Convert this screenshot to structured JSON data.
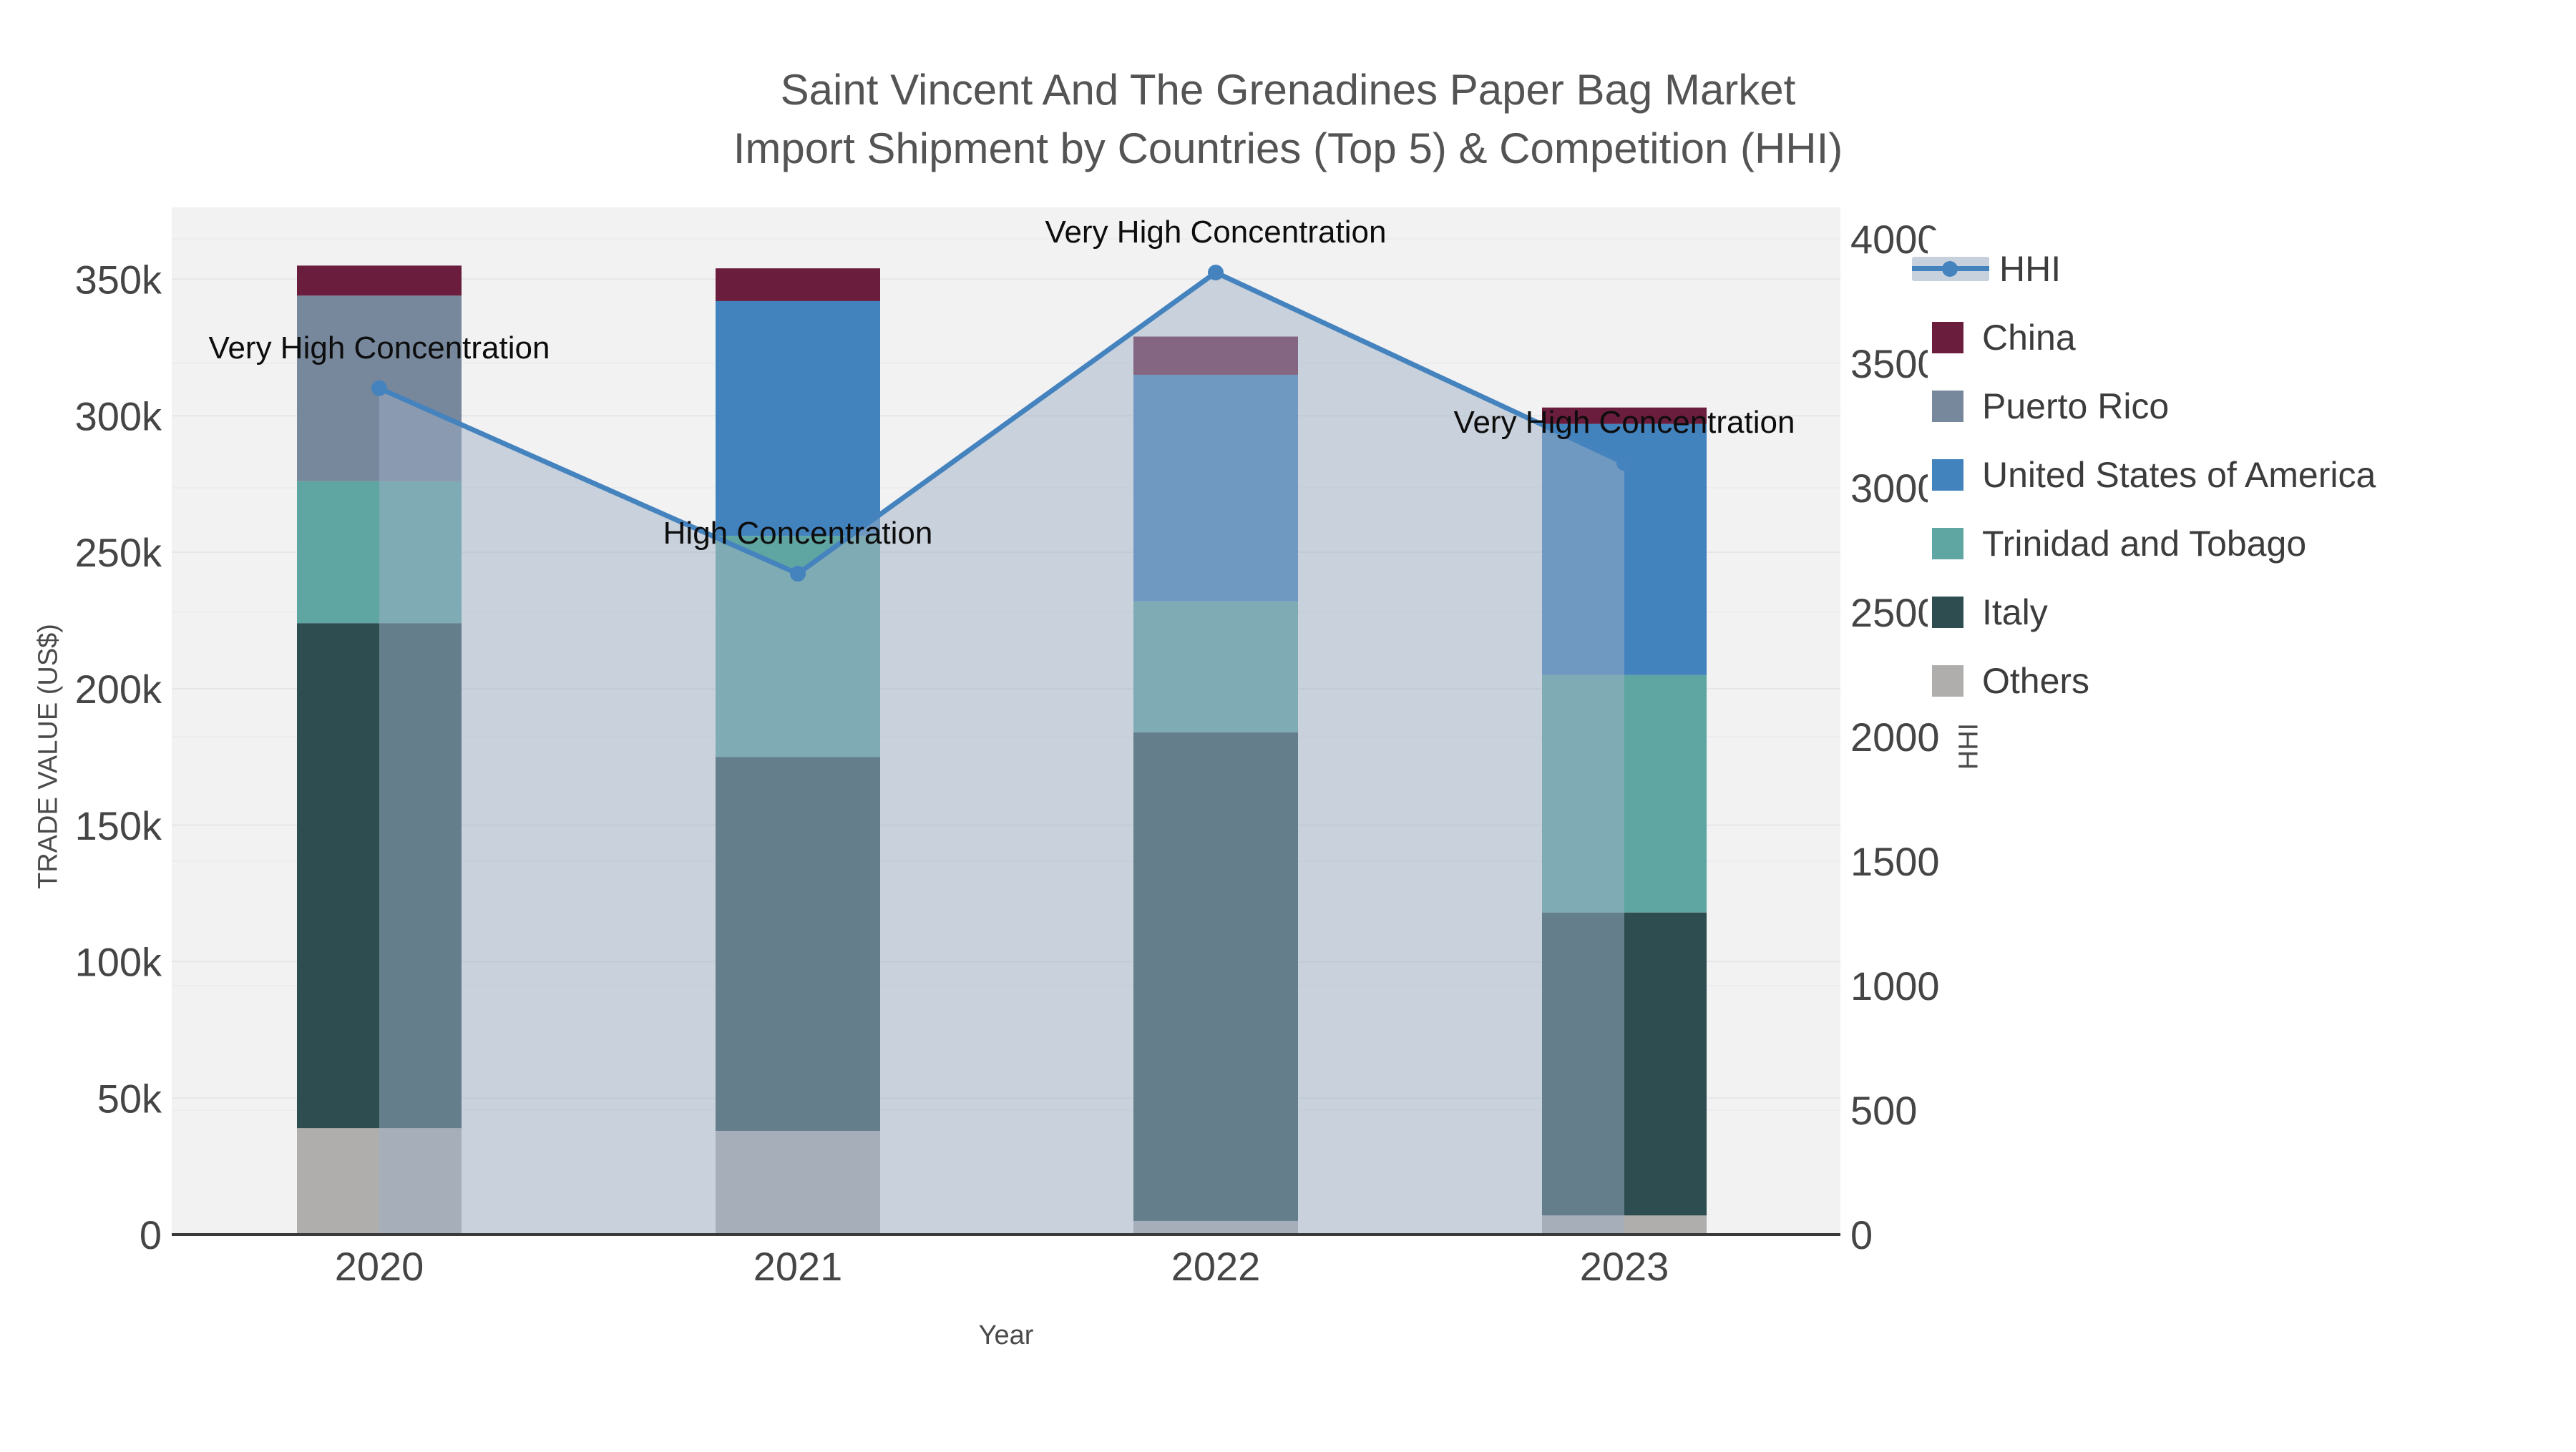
{
  "title": {
    "line1": "Saint Vincent And The Grenadines Paper Bag Market",
    "line2": "Import Shipment by Countries (Top 5) & Competition (HHI)"
  },
  "chart_data": {
    "type": "bar",
    "subtype": "stacked-bars-with-line-overlay",
    "categories": [
      "2020",
      "2021",
      "2022",
      "2023"
    ],
    "series": [
      {
        "name": "Others",
        "color": "#AFAEAC",
        "values": [
          39000,
          38000,
          5000,
          7000
        ]
      },
      {
        "name": "Italy",
        "color": "#2D4D50",
        "values": [
          185000,
          137000,
          179000,
          111000
        ]
      },
      {
        "name": "Trinidad and Tobago",
        "color": "#5FA6A2",
        "values": [
          52000,
          81000,
          48000,
          87000
        ]
      },
      {
        "name": "United States of America",
        "color": "#4282BD",
        "values": [
          0,
          86000,
          83000,
          92000
        ]
      },
      {
        "name": "Puerto Rico",
        "color": "#77879C",
        "values": [
          68000,
          0,
          0,
          0
        ]
      },
      {
        "name": "China",
        "color": "#6B1D3E",
        "values": [
          11000,
          12000,
          14000,
          6000
        ]
      }
    ],
    "line_series": {
      "name": "HHI",
      "color": "#4583BE",
      "area_fill": "rgba(158,175,197,0.5)",
      "values": [
        3400,
        2655,
        3865,
        3100
      ]
    },
    "annotations": [
      {
        "category": "2020",
        "text": "Very High Concentration"
      },
      {
        "category": "2021",
        "text": "High Concentration"
      },
      {
        "category": "2022",
        "text": "Very High Concentration"
      },
      {
        "category": "2023",
        "text": "Very High Concentration"
      }
    ],
    "xlabel": "Year",
    "ylabel_left": "TRADE VALUE (US$)",
    "ylabel_right": "HHI",
    "left_axis": {
      "ticks": [
        "0",
        "50k",
        "100k",
        "150k",
        "200k",
        "250k",
        "300k",
        "350k"
      ],
      "tick_values": [
        0,
        50000,
        100000,
        150000,
        200000,
        250000,
        300000,
        350000
      ],
      "ylim": [
        0,
        377000
      ]
    },
    "right_axis": {
      "ticks": [
        "0",
        "500",
        "1000",
        "1500",
        "2000",
        "2500",
        "3000",
        "3500",
        "4000"
      ],
      "tick_values": [
        0,
        500,
        1000,
        1500,
        2000,
        2500,
        3000,
        3500,
        4000
      ],
      "ylim": [
        0,
        4127
      ]
    },
    "grid": "on",
    "legend_position": "right",
    "plot_bg": "#F2F2F3",
    "grid_color_left": "#E4E6E8",
    "grid_color_right": "#ECEDEF",
    "axis_line_color": "#3A3A3A",
    "tick_color": "#454545"
  },
  "legend": {
    "items": [
      {
        "label": "HHI",
        "type": "line",
        "color": "#4583BE"
      },
      {
        "label": "China",
        "type": "square",
        "color": "#6B1D3E"
      },
      {
        "label": "Puerto Rico",
        "type": "square",
        "color": "#77879C"
      },
      {
        "label": "United States of America",
        "type": "square",
        "color": "#4282BD"
      },
      {
        "label": "Trinidad and Tobago",
        "type": "square",
        "color": "#5FA6A2"
      },
      {
        "label": "Italy",
        "type": "square",
        "color": "#2D4D50"
      },
      {
        "label": "Others",
        "type": "square",
        "color": "#AFAEAC"
      }
    ]
  }
}
